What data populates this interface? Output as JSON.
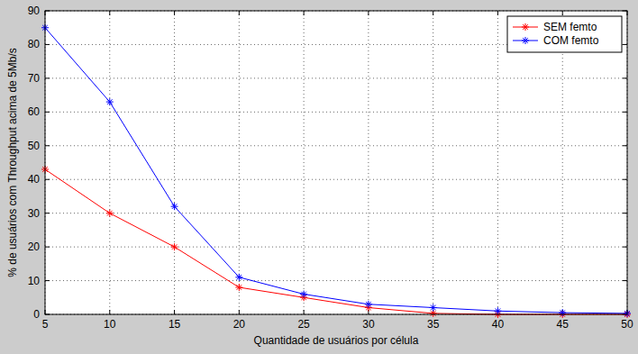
{
  "chart_data": {
    "type": "line",
    "x_label": "Quantidade de usuários por célula",
    "y_label": "% de usuários com Throughput acima de 5Mb/s",
    "x": [
      5,
      10,
      15,
      20,
      25,
      30,
      35,
      40,
      45,
      50
    ],
    "series": [
      {
        "name": "SEM femto",
        "color": "#ff0000",
        "marker": "asterisk",
        "line_style": "solid",
        "values": [
          43,
          30,
          20,
          8,
          5,
          2,
          0.3,
          0,
          0,
          0
        ]
      },
      {
        "name": "COM femto",
        "color": "#0000ff",
        "marker": "asterisk",
        "line_style": "solid",
        "values": [
          85,
          63,
          32,
          11,
          6,
          3,
          2,
          1,
          0.5,
          0.3
        ]
      }
    ],
    "xlim": [
      5,
      50
    ],
    "xticks": [
      5,
      10,
      15,
      20,
      25,
      30,
      35,
      40,
      45,
      50
    ],
    "ylim": [
      0,
      90
    ],
    "yticks": [
      0,
      10,
      20,
      30,
      40,
      50,
      60,
      70,
      80,
      90
    ],
    "grid": true,
    "legend": "top-right"
  }
}
